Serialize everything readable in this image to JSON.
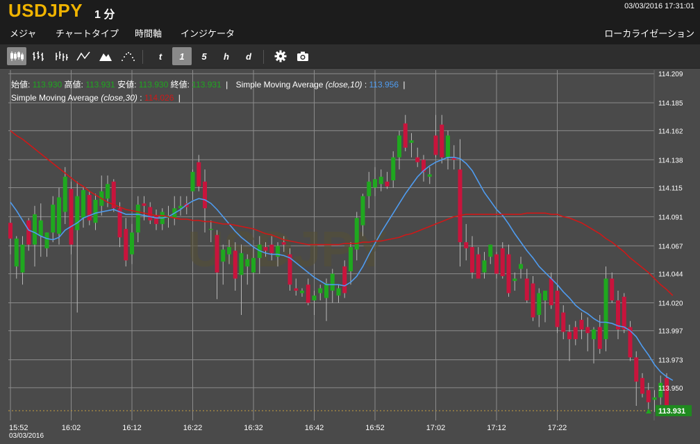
{
  "header": {
    "symbol": "USDJPY",
    "interval": "1 分",
    "datetime": "03/03/2016 17:31:01",
    "menu": [
      "メジャ",
      "チャートタイプ",
      "時間軸",
      "インジケータ"
    ],
    "localize": "ローカライゼーション"
  },
  "toolbar": {
    "chart_types": [
      "candlestick-icon",
      "ohlc-bars-icon",
      "hlc-bars-icon",
      "line-icon",
      "mountain-icon",
      "dots-icon"
    ],
    "periods": [
      "t",
      "1",
      "5",
      "h",
      "d"
    ],
    "active_period": "1",
    "tools": [
      "gear-icon",
      "camera-icon"
    ]
  },
  "legend": {
    "open_label": "始値:",
    "open": "113.930",
    "high_label": "高値:",
    "high": "113.931",
    "low_label": "安値:",
    "low": "113.930",
    "close_label": "終値:",
    "close": "113.931",
    "sma10_name": "Simple Moving Average",
    "sma10_params": "(close,10)",
    "sma10_value": "113.956",
    "sma30_name": "Simple Moving Average",
    "sma30_params": "(close,30)",
    "sma30_value": "114.026"
  },
  "watermark": "USDJPY",
  "colors": {
    "up": "#1fa81f",
    "down": "#c8143c",
    "sma10": "#4f9cf0",
    "sma30": "#d01818",
    "background": "#4a4a4a",
    "grid": "#8c8c8c",
    "last_price": "#1f8a1f"
  },
  "chart_data": {
    "type": "candlestick",
    "title": "USDJPY 1 分",
    "x_ticks": [
      "15:52",
      "16:02",
      "16:12",
      "16:22",
      "16:32",
      "16:42",
      "16:52",
      "17:02",
      "17:12",
      "17:22"
    ],
    "date_label": "03/03/2016",
    "y_ticks": [
      114.209,
      114.185,
      114.162,
      114.138,
      114.115,
      114.091,
      114.067,
      114.044,
      114.02,
      113.997,
      113.973,
      113.95
    ],
    "ylim": [
      113.923,
      114.212
    ],
    "last_price": 113.931,
    "grid": true,
    "candles": [
      {
        "o": 114.086,
        "h": 114.09,
        "l": 114.06,
        "c": 114.073
      },
      {
        "o": 114.05,
        "h": 114.075,
        "l": 114.04,
        "c": 114.073
      },
      {
        "o": 114.045,
        "h": 114.075,
        "l": 114.035,
        "c": 114.068
      },
      {
        "o": 114.088,
        "h": 114.09,
        "l": 114.063,
        "c": 114.068
      },
      {
        "o": 114.068,
        "h": 114.1,
        "l": 114.05,
        "c": 114.093
      },
      {
        "o": 114.075,
        "h": 114.102,
        "l": 114.058,
        "c": 114.088
      },
      {
        "o": 114.065,
        "h": 114.078,
        "l": 114.058,
        "c": 114.078
      },
      {
        "o": 114.078,
        "h": 114.108,
        "l": 114.07,
        "c": 114.101
      },
      {
        "o": 114.077,
        "h": 114.115,
        "l": 114.068,
        "c": 114.107
      },
      {
        "o": 114.095,
        "h": 114.132,
        "l": 114.085,
        "c": 114.124
      },
      {
        "o": 114.114,
        "h": 114.12,
        "l": 114.06,
        "c": 114.068
      },
      {
        "o": 114.08,
        "h": 114.12,
        "l": 114.012,
        "c": 114.108
      },
      {
        "o": 114.09,
        "h": 114.115,
        "l": 114.082,
        "c": 114.113
      },
      {
        "o": 114.109,
        "h": 114.112,
        "l": 114.084,
        "c": 114.088
      },
      {
        "o": 114.086,
        "h": 114.11,
        "l": 114.08,
        "c": 114.105
      },
      {
        "o": 114.1,
        "h": 114.125,
        "l": 114.092,
        "c": 114.112
      },
      {
        "o": 114.106,
        "h": 114.125,
        "l": 114.099,
        "c": 114.118
      },
      {
        "o": 114.12,
        "h": 114.122,
        "l": 114.095,
        "c": 114.098
      },
      {
        "o": 114.098,
        "h": 114.103,
        "l": 114.066,
        "c": 114.074
      },
      {
        "o": 114.081,
        "h": 114.09,
        "l": 114.05,
        "c": 114.055
      },
      {
        "o": 114.06,
        "h": 114.085,
        "l": 114.052,
        "c": 114.078
      },
      {
        "o": 114.078,
        "h": 114.108,
        "l": 114.07,
        "c": 114.101
      },
      {
        "o": 114.102,
        "h": 114.108,
        "l": 114.088,
        "c": 114.1
      },
      {
        "o": 114.099,
        "h": 114.103,
        "l": 114.085,
        "c": 114.088
      },
      {
        "o": 114.092,
        "h": 114.097,
        "l": 114.08,
        "c": 114.085
      },
      {
        "o": 114.085,
        "h": 114.098,
        "l": 114.08,
        "c": 114.095
      },
      {
        "o": 114.09,
        "h": 114.1,
        "l": 114.082,
        "c": 114.092
      },
      {
        "o": 114.09,
        "h": 114.108,
        "l": 114.084,
        "c": 114.098
      },
      {
        "o": 114.098,
        "h": 114.108,
        "l": 114.092,
        "c": 114.1
      },
      {
        "o": 114.102,
        "h": 114.108,
        "l": 114.093,
        "c": 114.099
      },
      {
        "o": 114.112,
        "h": 114.13,
        "l": 114.105,
        "c": 114.128
      },
      {
        "o": 114.136,
        "h": 114.142,
        "l": 114.112,
        "c": 114.116
      },
      {
        "o": 114.12,
        "h": 114.13,
        "l": 114.078,
        "c": 114.098
      },
      {
        "o": 114.081,
        "h": 114.088,
        "l": 114.07,
        "c": 114.081
      },
      {
        "o": 114.076,
        "h": 114.08,
        "l": 114.023,
        "c": 114.045
      },
      {
        "o": 114.054,
        "h": 114.068,
        "l": 114.035,
        "c": 114.064
      },
      {
        "o": 114.06,
        "h": 114.072,
        "l": 114.052,
        "c": 114.066
      },
      {
        "o": 114.063,
        "h": 114.07,
        "l": 114.03,
        "c": 114.04
      },
      {
        "o": 114.043,
        "h": 114.068,
        "l": 114.01,
        "c": 114.061
      },
      {
        "o": 114.05,
        "h": 114.06,
        "l": 114.035,
        "c": 114.056
      },
      {
        "o": 114.045,
        "h": 114.066,
        "l": 114.022,
        "c": 114.057
      },
      {
        "o": 114.057,
        "h": 114.075,
        "l": 114.044,
        "c": 114.068
      },
      {
        "o": 114.066,
        "h": 114.07,
        "l": 114.058,
        "c": 114.063
      },
      {
        "o": 114.068,
        "h": 114.075,
        "l": 114.055,
        "c": 114.061
      },
      {
        "o": 114.058,
        "h": 114.07,
        "l": 114.05,
        "c": 114.067
      },
      {
        "o": 114.07,
        "h": 114.075,
        "l": 114.062,
        "c": 114.068
      },
      {
        "o": 114.06,
        "h": 114.065,
        "l": 114.03,
        "c": 114.035
      },
      {
        "o": 114.032,
        "h": 114.04,
        "l": 114.026,
        "c": 114.03
      },
      {
        "o": 114.028,
        "h": 114.032,
        "l": 114.025,
        "c": 114.03
      },
      {
        "o": 114.035,
        "h": 114.04,
        "l": 114.018,
        "c": 114.02
      },
      {
        "o": 114.022,
        "h": 114.03,
        "l": 114.01,
        "c": 114.026
      },
      {
        "o": 114.028,
        "h": 114.035,
        "l": 114.022,
        "c": 114.032
      },
      {
        "o": 114.024,
        "h": 114.04,
        "l": 114.005,
        "c": 114.036
      },
      {
        "o": 114.03,
        "h": 114.048,
        "l": 114.02,
        "c": 114.044
      },
      {
        "o": 114.026,
        "h": 114.035,
        "l": 114.02,
        "c": 114.032
      },
      {
        "o": 114.05,
        "h": 114.055,
        "l": 114.024,
        "c": 114.028
      },
      {
        "o": 114.046,
        "h": 114.07,
        "l": 114.035,
        "c": 114.066
      },
      {
        "o": 114.064,
        "h": 114.095,
        "l": 114.055,
        "c": 114.09
      },
      {
        "o": 114.084,
        "h": 114.11,
        "l": 114.075,
        "c": 114.108
      },
      {
        "o": 114.108,
        "h": 114.128,
        "l": 114.098,
        "c": 114.12
      },
      {
        "o": 114.115,
        "h": 114.132,
        "l": 114.108,
        "c": 114.122
      },
      {
        "o": 114.118,
        "h": 114.13,
        "l": 114.112,
        "c": 114.124
      },
      {
        "o": 114.12,
        "h": 114.128,
        "l": 114.114,
        "c": 114.116
      },
      {
        "o": 114.121,
        "h": 114.145,
        "l": 114.115,
        "c": 114.14
      },
      {
        "o": 114.14,
        "h": 114.162,
        "l": 114.13,
        "c": 114.158
      },
      {
        "o": 114.168,
        "h": 114.175,
        "l": 114.145,
        "c": 114.148
      },
      {
        "o": 114.152,
        "h": 114.16,
        "l": 114.14,
        "c": 114.154
      },
      {
        "o": 114.14,
        "h": 114.148,
        "l": 114.132,
        "c": 114.136
      },
      {
        "o": 114.138,
        "h": 114.142,
        "l": 114.12,
        "c": 114.128
      },
      {
        "o": 114.124,
        "h": 114.132,
        "l": 114.118,
        "c": 114.126
      },
      {
        "o": 114.158,
        "h": 114.175,
        "l": 114.14,
        "c": 114.142
      },
      {
        "o": 114.167,
        "h": 114.175,
        "l": 114.135,
        "c": 114.14
      },
      {
        "o": 114.14,
        "h": 114.162,
        "l": 114.13,
        "c": 114.158
      },
      {
        "o": 114.14,
        "h": 114.15,
        "l": 114.13,
        "c": 114.138
      },
      {
        "o": 114.13,
        "h": 114.155,
        "l": 114.05,
        "c": 114.07
      },
      {
        "o": 114.07,
        "h": 114.085,
        "l": 114.055,
        "c": 114.065
      },
      {
        "o": 114.066,
        "h": 114.075,
        "l": 114.04,
        "c": 114.045
      },
      {
        "o": 114.06,
        "h": 114.066,
        "l": 114.04,
        "c": 114.04
      },
      {
        "o": 114.045,
        "h": 114.062,
        "l": 114.04,
        "c": 114.055
      },
      {
        "o": 114.058,
        "h": 114.068,
        "l": 114.052,
        "c": 114.068
      },
      {
        "o": 114.06,
        "h": 114.062,
        "l": 114.04,
        "c": 114.044
      },
      {
        "o": 114.065,
        "h": 114.07,
        "l": 114.04,
        "c": 114.042
      },
      {
        "o": 114.06,
        "h": 114.068,
        "l": 114.025,
        "c": 114.028
      },
      {
        "o": 114.038,
        "h": 114.045,
        "l": 114.03,
        "c": 114.04
      },
      {
        "o": 114.048,
        "h": 114.058,
        "l": 114.04,
        "c": 114.052
      },
      {
        "o": 114.04,
        "h": 114.048,
        "l": 114.02,
        "c": 114.022
      },
      {
        "o": 114.036,
        "h": 114.042,
        "l": 114.005,
        "c": 114.008
      },
      {
        "o": 114.01,
        "h": 114.032,
        "l": 114.0,
        "c": 114.028
      },
      {
        "o": 114.022,
        "h": 114.028,
        "l": 114.004,
        "c": 114.03
      },
      {
        "o": 114.04,
        "h": 114.045,
        "l": 114.015,
        "c": 114.018
      },
      {
        "o": 114.03,
        "h": 114.035,
        "l": 113.995,
        "c": 114.0
      },
      {
        "o": 114.012,
        "h": 114.018,
        "l": 113.99,
        "c": 113.996
      },
      {
        "o": 113.996,
        "h": 114.002,
        "l": 113.972,
        "c": 113.99
      },
      {
        "o": 114.0,
        "h": 114.005,
        "l": 113.985,
        "c": 113.99
      },
      {
        "o": 114.006,
        "h": 114.012,
        "l": 113.99,
        "c": 113.998
      },
      {
        "o": 114.0,
        "h": 114.008,
        "l": 113.98,
        "c": 113.995
      },
      {
        "o": 113.99,
        "h": 114.0,
        "l": 113.97,
        "c": 113.998
      },
      {
        "o": 114.0,
        "h": 114.01,
        "l": 113.978,
        "c": 113.982
      },
      {
        "o": 113.99,
        "h": 114.05,
        "l": 113.98,
        "c": 114.04
      },
      {
        "o": 114.04,
        "h": 114.045,
        "l": 114.02,
        "c": 114.022
      },
      {
        "o": 114.022,
        "h": 114.03,
        "l": 113.99,
        "c": 113.998
      },
      {
        "o": 114.025,
        "h": 114.028,
        "l": 113.995,
        "c": 113.998
      },
      {
        "o": 114.0,
        "h": 114.005,
        "l": 113.972,
        "c": 113.975
      },
      {
        "o": 113.975,
        "h": 113.98,
        "l": 113.935,
        "c": 113.955
      },
      {
        "o": 113.958,
        "h": 113.962,
        "l": 113.942,
        "c": 113.945
      },
      {
        "o": 113.948,
        "h": 113.954,
        "l": 113.93,
        "c": 113.938
      },
      {
        "o": 113.94,
        "h": 113.948,
        "l": 113.93,
        "c": 113.942
      },
      {
        "o": 113.942,
        "h": 113.96,
        "l": 113.936,
        "c": 113.954
      },
      {
        "o": 113.958,
        "h": 113.962,
        "l": 113.93,
        "c": 113.932
      },
      {
        "o": 113.93,
        "h": 113.931,
        "l": 113.93,
        "c": 113.931
      }
    ],
    "series": [
      {
        "name": "Simple Moving Average (close,10)",
        "color": "#4f9cf0",
        "values": [
          114.103,
          114.096,
          114.088,
          114.08,
          114.078,
          114.075,
          114.073,
          114.072,
          114.074,
          114.08,
          114.083,
          114.086,
          114.09,
          114.092,
          114.094,
          114.095,
          114.096,
          114.097,
          114.095,
          114.093,
          114.093,
          114.093,
          114.092,
          114.091,
          114.09,
          114.09,
          114.091,
          114.094,
          114.097,
          114.101,
          114.104,
          114.106,
          114.105,
          114.102,
          114.097,
          114.091,
          114.085,
          114.079,
          114.074,
          114.07,
          114.066,
          114.063,
          114.061,
          114.06,
          114.06,
          114.059,
          114.057,
          114.053,
          114.049,
          114.045,
          114.041,
          114.038,
          114.035,
          114.035,
          114.035,
          114.034,
          114.037,
          114.042,
          114.05,
          114.06,
          114.069,
          114.078,
          114.086,
          114.094,
          114.102,
          114.11,
          114.117,
          114.124,
          114.129,
          114.133,
          114.136,
          114.138,
          114.14,
          114.14,
          114.139,
          114.135,
          114.129,
          114.12,
          114.111,
          114.104,
          114.097,
          114.092,
          114.085,
          114.077,
          114.07,
          114.063,
          114.057,
          114.05,
          114.045,
          114.04,
          114.035,
          114.029,
          114.024,
          114.018,
          114.014,
          114.011,
          114.007,
          114.004,
          114.004,
          114.003,
          114.001,
          114.0,
          113.997,
          113.992,
          113.984,
          113.977,
          113.969,
          113.963,
          113.959,
          113.956
        ]
      },
      {
        "name": "Simple Moving Average (close,30)",
        "color": "#d01818",
        "values": [
          114.162,
          114.158,
          114.155,
          114.151,
          114.147,
          114.143,
          114.139,
          114.135,
          114.131,
          114.127,
          114.123,
          114.119,
          114.116,
          114.112,
          114.109,
          114.106,
          114.103,
          114.101,
          114.099,
          114.097,
          114.096,
          114.095,
          114.094,
          114.093,
          114.092,
          114.092,
          114.091,
          114.09,
          114.089,
          114.089,
          114.088,
          114.088,
          114.087,
          114.087,
          114.086,
          114.085,
          114.085,
          114.084,
          114.083,
          114.082,
          114.081,
          114.079,
          114.077,
          114.076,
          114.074,
          114.072,
          114.071,
          114.07,
          114.069,
          114.068,
          114.068,
          114.068,
          114.068,
          114.068,
          114.068,
          114.069,
          114.069,
          114.069,
          114.07,
          114.07,
          114.071,
          114.071,
          114.072,
          114.073,
          114.074,
          114.076,
          114.077,
          114.079,
          114.081,
          114.083,
          114.085,
          114.087,
          114.089,
          114.091,
          114.092,
          114.093,
          114.093,
          114.093,
          114.093,
          114.093,
          114.093,
          114.093,
          114.093,
          114.093,
          114.093,
          114.094,
          114.094,
          114.094,
          114.094,
          114.093,
          114.093,
          114.091,
          114.09,
          114.088,
          114.086,
          114.083,
          114.08,
          114.077,
          114.073,
          114.07,
          114.066,
          114.062,
          114.057,
          114.053,
          114.049,
          114.045,
          114.04,
          114.035,
          114.031,
          114.026
        ]
      }
    ]
  }
}
